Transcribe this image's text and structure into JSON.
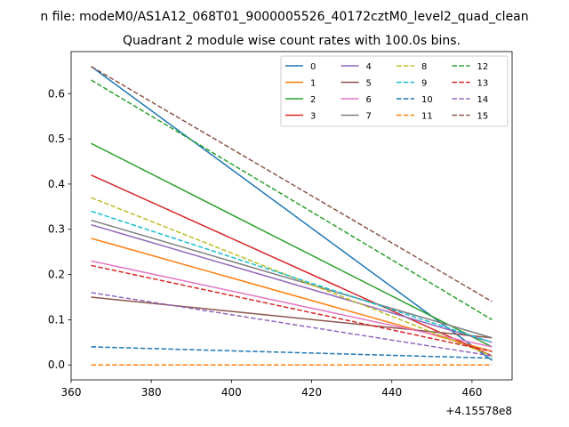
{
  "suptitle": "n file: modeM0/AS1A12_068T01_9000005526_40172cztM0_level2_quad_clean",
  "chart_data": {
    "type": "line",
    "title": "Quadrant 2 module wise count rates with 100.0s bins.",
    "xlabel": "",
    "ylabel": "",
    "x_offset_label": "+4.15578e8",
    "xlim": [
      360,
      470
    ],
    "ylim": [
      -0.033,
      0.693
    ],
    "x_ticks": [
      360,
      380,
      400,
      420,
      440,
      460
    ],
    "y_ticks": [
      0.0,
      0.1,
      0.2,
      0.3,
      0.4,
      0.5,
      0.6
    ],
    "x_tick_labels": [
      "360",
      "380",
      "400",
      "420",
      "440",
      "460"
    ],
    "y_tick_labels": [
      "0.0",
      "0.1",
      "0.2",
      "0.3",
      "0.4",
      "0.5",
      "0.6"
    ],
    "legend_position": "upper right",
    "x": [
      365,
      465
    ],
    "series": [
      {
        "name": "0",
        "values": [
          0.66,
          0.01
        ],
        "color": "#1f77b4",
        "dash": false
      },
      {
        "name": "1",
        "values": [
          0.28,
          0.03
        ],
        "color": "#ff7f0e",
        "dash": false
      },
      {
        "name": "2",
        "values": [
          0.49,
          0.04
        ],
        "color": "#2ca02c",
        "dash": false
      },
      {
        "name": "3",
        "values": [
          0.42,
          0.02
        ],
        "color": "#d62728",
        "dash": false
      },
      {
        "name": "4",
        "values": [
          0.31,
          0.05
        ],
        "color": "#9467bd",
        "dash": false
      },
      {
        "name": "5",
        "values": [
          0.15,
          0.06
        ],
        "color": "#8c564b",
        "dash": false
      },
      {
        "name": "6",
        "values": [
          0.23,
          0.04
        ],
        "color": "#e377c2",
        "dash": false
      },
      {
        "name": "7",
        "values": [
          0.32,
          0.06
        ],
        "color": "#7f7f7f",
        "dash": false
      },
      {
        "name": "8",
        "values": [
          0.37,
          0.02
        ],
        "color": "#bcbd22",
        "dash": true
      },
      {
        "name": "9",
        "values": [
          0.34,
          0.05
        ],
        "color": "#17becf",
        "dash": true
      },
      {
        "name": "10",
        "values": [
          0.04,
          0.015
        ],
        "color": "#1f77b4",
        "dash": true
      },
      {
        "name": "11",
        "values": [
          0.0,
          0.0
        ],
        "color": "#ff7f0e",
        "dash": true
      },
      {
        "name": "12",
        "values": [
          0.63,
          0.1
        ],
        "color": "#2ca02c",
        "dash": true
      },
      {
        "name": "13",
        "values": [
          0.22,
          0.03
        ],
        "color": "#d62728",
        "dash": true
      },
      {
        "name": "14",
        "values": [
          0.16,
          0.02
        ],
        "color": "#9467bd",
        "dash": true
      },
      {
        "name": "15",
        "values": [
          0.66,
          0.14
        ],
        "color": "#8c564b",
        "dash": true
      }
    ]
  }
}
